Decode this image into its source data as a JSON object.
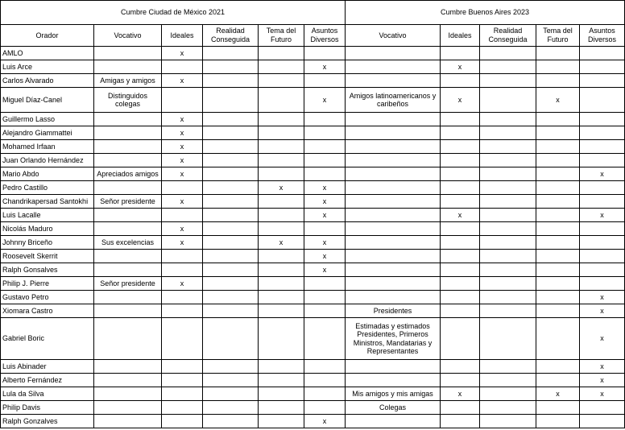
{
  "headers": {
    "summit_mexico": "Cumbre Ciudad de México 2021",
    "summit_buenos_aires": "Cumbre Buenos Aires 2023",
    "orador": "Orador",
    "vocativo": "Vocativo",
    "ideales": "Ideales",
    "realidad": "Realidad Conseguida",
    "tema": "Tema del Futuro",
    "asuntos": "Asuntos Diversos"
  },
  "rows": [
    {
      "orador": "AMLO",
      "mx": {
        "vocativo": "",
        "ideales": "x",
        "realidad": "",
        "tema": "",
        "asuntos": ""
      },
      "ba": {
        "vocativo": "",
        "ideales": "",
        "realidad": "",
        "tema": "",
        "asuntos": ""
      }
    },
    {
      "orador": "Luis Arce",
      "mx": {
        "vocativo": "",
        "ideales": "",
        "realidad": "",
        "tema": "",
        "asuntos": "x"
      },
      "ba": {
        "vocativo": "",
        "ideales": "x",
        "realidad": "",
        "tema": "",
        "asuntos": ""
      }
    },
    {
      "orador": "Carlos Alvarado",
      "mx": {
        "vocativo": "Amigas y amigos",
        "ideales": "x",
        "realidad": "",
        "tema": "",
        "asuntos": ""
      },
      "ba": {
        "vocativo": "",
        "ideales": "",
        "realidad": "",
        "tema": "",
        "asuntos": ""
      }
    },
    {
      "orador": "Miguel Díaz-Canel",
      "mx": {
        "vocativo": "Distinguidos colegas",
        "ideales": "",
        "realidad": "",
        "tema": "",
        "asuntos": "x"
      },
      "ba": {
        "vocativo": "Amigos latinoamericanos y caribeños",
        "ideales": "x",
        "realidad": "",
        "tema": "x",
        "asuntos": ""
      }
    },
    {
      "orador": "Guillermo Lasso",
      "mx": {
        "vocativo": "",
        "ideales": "x",
        "realidad": "",
        "tema": "",
        "asuntos": ""
      },
      "ba": {
        "vocativo": "",
        "ideales": "",
        "realidad": "",
        "tema": "",
        "asuntos": ""
      }
    },
    {
      "orador": "Alejandro Giammattei",
      "mx": {
        "vocativo": "",
        "ideales": "x",
        "realidad": "",
        "tema": "",
        "asuntos": ""
      },
      "ba": {
        "vocativo": "",
        "ideales": "",
        "realidad": "",
        "tema": "",
        "asuntos": ""
      }
    },
    {
      "orador": "Mohamed Irfaan",
      "mx": {
        "vocativo": "",
        "ideales": "x",
        "realidad": "",
        "tema": "",
        "asuntos": ""
      },
      "ba": {
        "vocativo": "",
        "ideales": "",
        "realidad": "",
        "tema": "",
        "asuntos": ""
      }
    },
    {
      "orador": "Juan Orlando Hernández",
      "mx": {
        "vocativo": "",
        "ideales": "x",
        "realidad": "",
        "tema": "",
        "asuntos": ""
      },
      "ba": {
        "vocativo": "",
        "ideales": "",
        "realidad": "",
        "tema": "",
        "asuntos": ""
      }
    },
    {
      "orador": "Mario Abdo",
      "mx": {
        "vocativo": "Apreciados amigos",
        "ideales": "x",
        "realidad": "",
        "tema": "",
        "asuntos": ""
      },
      "ba": {
        "vocativo": "",
        "ideales": "",
        "realidad": "",
        "tema": "",
        "asuntos": "x"
      }
    },
    {
      "orador": "Pedro Castillo",
      "mx": {
        "vocativo": "",
        "ideales": "",
        "realidad": "",
        "tema": "x",
        "asuntos": "x"
      },
      "ba": {
        "vocativo": "",
        "ideales": "",
        "realidad": "",
        "tema": "",
        "asuntos": ""
      }
    },
    {
      "orador": "Chandrikapersad Santokhi",
      "mx": {
        "vocativo": "Señor presidente",
        "ideales": "x",
        "realidad": "",
        "tema": "",
        "asuntos": "x"
      },
      "ba": {
        "vocativo": "",
        "ideales": "",
        "realidad": "",
        "tema": "",
        "asuntos": ""
      }
    },
    {
      "orador": "Luis Lacalle",
      "mx": {
        "vocativo": "",
        "ideales": "",
        "realidad": "",
        "tema": "",
        "asuntos": "x"
      },
      "ba": {
        "vocativo": "",
        "ideales": "x",
        "realidad": "",
        "tema": "",
        "asuntos": "x"
      }
    },
    {
      "orador": "Nicolás Maduro",
      "mx": {
        "vocativo": "",
        "ideales": "x",
        "realidad": "",
        "tema": "",
        "asuntos": ""
      },
      "ba": {
        "vocativo": "",
        "ideales": "",
        "realidad": "",
        "tema": "",
        "asuntos": ""
      }
    },
    {
      "orador": "Johnny Briceño",
      "mx": {
        "vocativo": "Sus excelencias",
        "ideales": "x",
        "realidad": "",
        "tema": "x",
        "asuntos": "x"
      },
      "ba": {
        "vocativo": "",
        "ideales": "",
        "realidad": "",
        "tema": "",
        "asuntos": ""
      }
    },
    {
      "orador": "Roosevelt Skerrit",
      "mx": {
        "vocativo": "",
        "ideales": "",
        "realidad": "",
        "tema": "",
        "asuntos": "x"
      },
      "ba": {
        "vocativo": "",
        "ideales": "",
        "realidad": "",
        "tema": "",
        "asuntos": ""
      }
    },
    {
      "orador": "Ralph Gonsalves",
      "mx": {
        "vocativo": "",
        "ideales": "",
        "realidad": "",
        "tema": "",
        "asuntos": "x"
      },
      "ba": {
        "vocativo": "",
        "ideales": "",
        "realidad": "",
        "tema": "",
        "asuntos": ""
      }
    },
    {
      "orador": "Philip J. Pierre",
      "mx": {
        "vocativo": "Señor presidente",
        "ideales": "x",
        "realidad": "",
        "tema": "",
        "asuntos": ""
      },
      "ba": {
        "vocativo": "",
        "ideales": "",
        "realidad": "",
        "tema": "",
        "asuntos": ""
      }
    },
    {
      "orador": "Gustavo Petro",
      "mx": {
        "vocativo": "",
        "ideales": "",
        "realidad": "",
        "tema": "",
        "asuntos": ""
      },
      "ba": {
        "vocativo": "",
        "ideales": "",
        "realidad": "",
        "tema": "",
        "asuntos": "x"
      }
    },
    {
      "orador": "Xiomara Castro",
      "mx": {
        "vocativo": "",
        "ideales": "",
        "realidad": "",
        "tema": "",
        "asuntos": ""
      },
      "ba": {
        "vocativo": "Presidentes",
        "ideales": "",
        "realidad": "",
        "tema": "",
        "asuntos": "x"
      }
    },
    {
      "orador": "Gabriel Boric",
      "mx": {
        "vocativo": "",
        "ideales": "",
        "realidad": "",
        "tema": "",
        "asuntos": ""
      },
      "ba": {
        "vocativo": "Estimadas y estimados Presidentes, Primeros Ministros, Mandatarias y Representantes",
        "ideales": "",
        "realidad": "",
        "tema": "",
        "asuntos": "x"
      }
    },
    {
      "orador": "Luis Abinader",
      "mx": {
        "vocativo": "",
        "ideales": "",
        "realidad": "",
        "tema": "",
        "asuntos": ""
      },
      "ba": {
        "vocativo": "",
        "ideales": "",
        "realidad": "",
        "tema": "",
        "asuntos": "x"
      }
    },
    {
      "orador": "Alberto Fernández",
      "mx": {
        "vocativo": "",
        "ideales": "",
        "realidad": "",
        "tema": "",
        "asuntos": ""
      },
      "ba": {
        "vocativo": "",
        "ideales": "",
        "realidad": "",
        "tema": "",
        "asuntos": "x"
      }
    },
    {
      "orador": "Lula da Silva",
      "mx": {
        "vocativo": "",
        "ideales": "",
        "realidad": "",
        "tema": "",
        "asuntos": ""
      },
      "ba": {
        "vocativo": "Mis amigos y mis amigas",
        "ideales": "x",
        "realidad": "",
        "tema": "x",
        "asuntos": "x"
      }
    },
    {
      "orador": "Philip Davis",
      "mx": {
        "vocativo": "",
        "ideales": "",
        "realidad": "",
        "tema": "",
        "asuntos": ""
      },
      "ba": {
        "vocativo": "Colegas",
        "ideales": "",
        "realidad": "",
        "tema": "",
        "asuntos": ""
      }
    },
    {
      "orador": "Ralph Gonzalves",
      "mx": {
        "vocativo": "",
        "ideales": "",
        "realidad": "",
        "tema": "",
        "asuntos": "x"
      },
      "ba": {
        "vocativo": "",
        "ideales": "",
        "realidad": "",
        "tema": "",
        "asuntos": ""
      }
    }
  ]
}
